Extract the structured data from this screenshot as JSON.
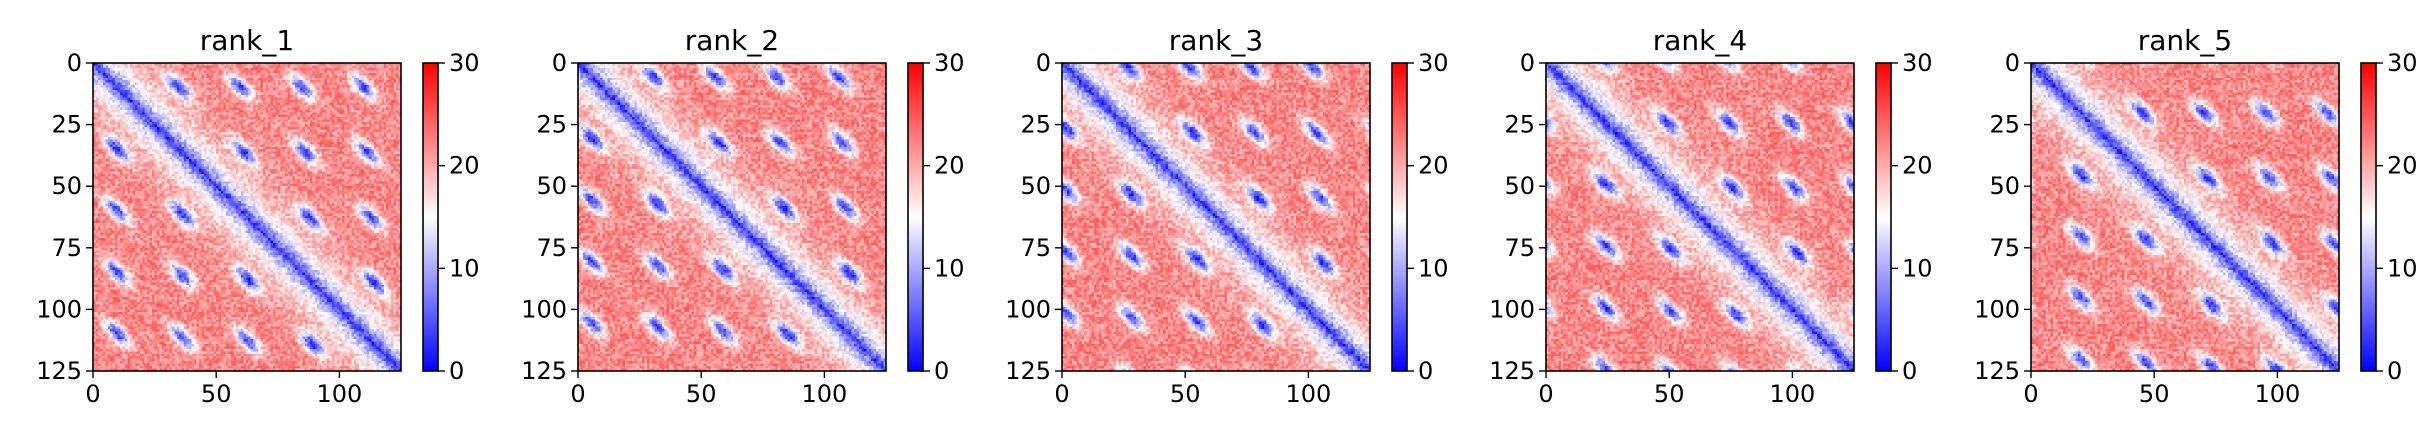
{
  "chart_data": [
    {
      "type": "heatmap",
      "title": "rank_1",
      "x_ticks": [
        0,
        50,
        100
      ],
      "y_ticks": [
        0,
        25,
        50,
        75,
        100,
        125
      ],
      "extent": [
        0,
        125
      ],
      "colorbar": {
        "colormap": "bwr",
        "vmin": 0,
        "vmax": 30,
        "ticks": [
          0,
          10,
          20,
          30
        ]
      },
      "blob_band_offsets": [
        25,
        50,
        75,
        100
      ],
      "blob_period": 26.5,
      "diagonal_value": 3
    },
    {
      "type": "heatmap",
      "title": "rank_2",
      "x_ticks": [
        0,
        50,
        100
      ],
      "y_ticks": [
        0,
        25,
        50,
        75,
        100,
        125
      ],
      "extent": [
        0,
        125
      ],
      "colorbar": {
        "colormap": "bwr",
        "vmin": 0,
        "vmax": 30,
        "ticks": [
          0,
          10,
          20,
          30
        ]
      },
      "blob_band_offsets": [
        25,
        50,
        75,
        100
      ],
      "blob_period": 26.5,
      "diagonal_value": 3
    },
    {
      "type": "heatmap",
      "title": "rank_3",
      "x_ticks": [
        0,
        50,
        100
      ],
      "y_ticks": [
        0,
        25,
        50,
        75,
        100,
        125
      ],
      "extent": [
        0,
        125
      ],
      "colorbar": {
        "colormap": "bwr",
        "vmin": 0,
        "vmax": 30,
        "ticks": [
          0,
          10,
          20,
          30
        ]
      },
      "blob_band_offsets": [
        25,
        50,
        75,
        100
      ],
      "blob_period": 26.5,
      "diagonal_value": 3
    },
    {
      "type": "heatmap",
      "title": "rank_4",
      "x_ticks": [
        0,
        50,
        100
      ],
      "y_ticks": [
        0,
        25,
        50,
        75,
        100,
        125
      ],
      "extent": [
        0,
        125
      ],
      "colorbar": {
        "colormap": "bwr",
        "vmin": 0,
        "vmax": 30,
        "ticks": [
          0,
          10,
          20,
          30
        ]
      },
      "blob_band_offsets": [
        25,
        50,
        75,
        100
      ],
      "blob_period": 26.5,
      "diagonal_value": 3
    },
    {
      "type": "heatmap",
      "title": "rank_5",
      "x_ticks": [
        0,
        50,
        100
      ],
      "y_ticks": [
        0,
        25,
        50,
        75,
        100,
        125
      ],
      "extent": [
        0,
        125
      ],
      "colorbar": {
        "colormap": "bwr",
        "vmin": 0,
        "vmax": 30,
        "ticks": [
          0,
          10,
          20,
          30
        ]
      },
      "blob_band_offsets": [
        25,
        50,
        75,
        100
      ],
      "blob_period": 26.5,
      "diagonal_value": 3
    }
  ]
}
